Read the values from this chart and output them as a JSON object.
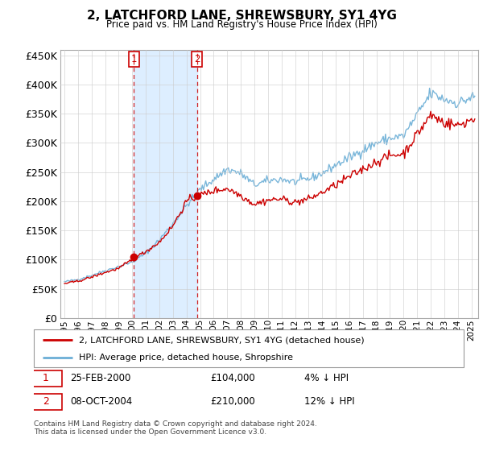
{
  "title": "2, LATCHFORD LANE, SHREWSBURY, SY1 4YG",
  "subtitle": "Price paid vs. HM Land Registry's House Price Index (HPI)",
  "legend_property": "2, LATCHFORD LANE, SHREWSBURY, SY1 4YG (detached house)",
  "legend_hpi": "HPI: Average price, detached house, Shropshire",
  "sale1_date": "25-FEB-2000",
  "sale1_price": "£104,000",
  "sale1_hpi": "4% ↓ HPI",
  "sale1_year": 2000.12,
  "sale1_value": 104000,
  "sale2_date": "08-OCT-2004",
  "sale2_price": "£210,000",
  "sale2_hpi": "12% ↓ HPI",
  "sale2_year": 2004.77,
  "sale2_value": 210000,
  "footer": "Contains HM Land Registry data © Crown copyright and database right 2024.\nThis data is licensed under the Open Government Licence v3.0.",
  "ylim": [
    0,
    460000
  ],
  "hpi_color": "#6baed6",
  "property_color": "#cc0000",
  "sale_marker_color": "#cc0000",
  "shade_color": "#ddeeff",
  "grid_color": "#cccccc"
}
